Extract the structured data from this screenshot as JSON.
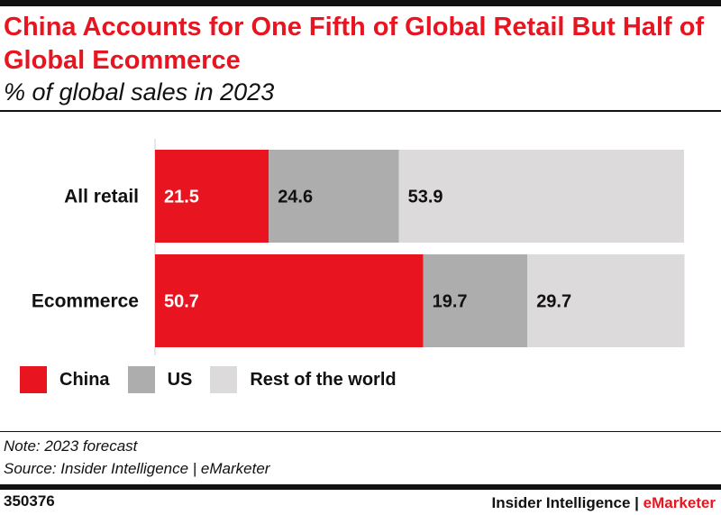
{
  "chart_data": {
    "type": "bar",
    "orientation": "horizontal",
    "stacked": true,
    "title": "China Accounts for One Fifth of Global Retail But Half of Global Ecommerce",
    "subtitle": "% of global sales in 2023",
    "categories": [
      "All retail",
      "Ecommerce"
    ],
    "series": [
      {
        "name": "China",
        "values": [
          21.5,
          50.7
        ],
        "color": "#e8141f",
        "label_color": "#ffffff"
      },
      {
        "name": "US",
        "values": [
          24.6,
          19.7
        ],
        "color": "#adadad",
        "label_color": "#111111"
      },
      {
        "name": "Rest of the world",
        "values": [
          53.9,
          29.7
        ],
        "color": "#dcdadb",
        "label_color": "#111111"
      }
    ],
    "xlim": [
      0,
      100
    ],
    "grid": false,
    "legend_position": "bottom-left"
  },
  "footer": {
    "note": "Note: 2023 forecast",
    "source": "Source: Insider Intelligence | eMarketer",
    "chart_id": "350376",
    "brand_main": "Insider Intelligence | ",
    "brand_accent": "eMarketer"
  }
}
